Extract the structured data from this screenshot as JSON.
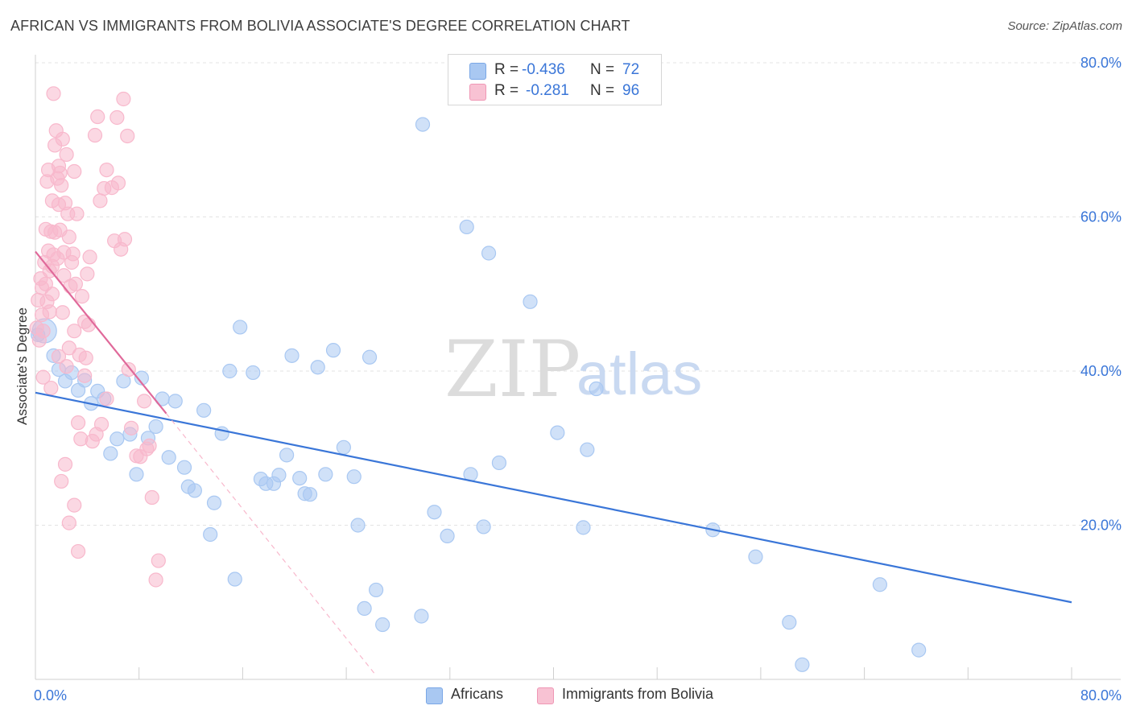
{
  "title": "AFRICAN VS IMMIGRANTS FROM BOLIVIA ASSOCIATE'S DEGREE CORRELATION CHART",
  "source": "Source: ZipAtlas.com",
  "watermark": {
    "zip": "ZIP",
    "atlas": "atlas"
  },
  "legend_top": {
    "r_label": "R =",
    "n_label": "N =",
    "rows": [
      {
        "r": "-0.436",
        "n": "72",
        "color": "#a9c8f2"
      },
      {
        "r": "-0.281",
        "n": "96",
        "color": "#f8b8cc"
      }
    ]
  },
  "legend_bottom": [
    "Africans",
    "Immigrants from Bolivia"
  ],
  "chart_data": {
    "type": "scatter",
    "xlabel": "",
    "ylabel": "Associate's Degree",
    "xlim": [
      0,
      80
    ],
    "ylim": [
      0,
      80
    ],
    "x_tick_labels": [
      "0.0%",
      "80.0%"
    ],
    "y_ticks": [
      20,
      40,
      60,
      80
    ],
    "y_tick_labels": [
      "20.0%",
      "40.0%",
      "60.0%",
      "80.0%"
    ],
    "grid": true,
    "series": [
      {
        "name": "Africans",
        "color": "#3a76d8",
        "fill": "#a9c8f2",
        "trend": {
          "x0": 0,
          "y0": 37.2,
          "x1": 80,
          "y1": 10.0,
          "style": "solid"
        },
        "points": [
          [
            0.2,
            44.7
          ],
          [
            1.4,
            42.0
          ],
          [
            1.8,
            40.2
          ],
          [
            2.3,
            38.7
          ],
          [
            2.8,
            39.8
          ],
          [
            3.3,
            37.5
          ],
          [
            3.8,
            38.8
          ],
          [
            4.3,
            35.8
          ],
          [
            4.8,
            37.4
          ],
          [
            5.3,
            36.4
          ],
          [
            5.8,
            29.3
          ],
          [
            6.3,
            31.2
          ],
          [
            6.8,
            38.7
          ],
          [
            7.3,
            31.8
          ],
          [
            7.8,
            26.6
          ],
          [
            8.2,
            39.1
          ],
          [
            8.7,
            31.3
          ],
          [
            9.3,
            32.8
          ],
          [
            9.8,
            36.4
          ],
          [
            10.3,
            28.8
          ],
          [
            10.8,
            36.1
          ],
          [
            11.5,
            27.5
          ],
          [
            11.8,
            25.0
          ],
          [
            12.3,
            24.5
          ],
          [
            13.0,
            34.9
          ],
          [
            13.5,
            18.8
          ],
          [
            13.8,
            22.9
          ],
          [
            14.4,
            31.9
          ],
          [
            15.0,
            40.0
          ],
          [
            15.4,
            13.0
          ],
          [
            15.8,
            45.7
          ],
          [
            16.8,
            39.8
          ],
          [
            17.4,
            26.0
          ],
          [
            17.8,
            25.4
          ],
          [
            18.4,
            25.4
          ],
          [
            18.8,
            26.5
          ],
          [
            19.4,
            29.1
          ],
          [
            19.8,
            42.0
          ],
          [
            20.4,
            26.1
          ],
          [
            20.8,
            24.1
          ],
          [
            21.2,
            24.0
          ],
          [
            21.8,
            40.5
          ],
          [
            22.4,
            26.6
          ],
          [
            23.0,
            42.7
          ],
          [
            23.8,
            30.1
          ],
          [
            24.6,
            26.3
          ],
          [
            24.9,
            20.0
          ],
          [
            25.4,
            9.2
          ],
          [
            25.8,
            41.8
          ],
          [
            26.3,
            11.6
          ],
          [
            26.8,
            7.1
          ],
          [
            29.8,
            8.2
          ],
          [
            29.9,
            72.0
          ],
          [
            30.8,
            21.7
          ],
          [
            31.8,
            18.6
          ],
          [
            33.3,
            58.7
          ],
          [
            33.6,
            26.6
          ],
          [
            34.6,
            19.8
          ],
          [
            35.0,
            55.3
          ],
          [
            35.8,
            28.1
          ],
          [
            38.2,
            49.0
          ],
          [
            40.3,
            32.0
          ],
          [
            42.3,
            19.7
          ],
          [
            42.6,
            29.8
          ],
          [
            43.3,
            37.7
          ],
          [
            52.3,
            19.4
          ],
          [
            55.6,
            15.9
          ],
          [
            58.2,
            7.4
          ],
          [
            59.2,
            1.9
          ],
          [
            65.2,
            12.3
          ],
          [
            68.2,
            3.8
          ]
        ]
      },
      {
        "name": "Immigrants from Bolivia",
        "color": "#e0699a",
        "fill": "#f8b8cc",
        "trend": {
          "x0": 0,
          "y0": 55.5,
          "x1": 10.1,
          "y1": 34.5,
          "style": "solid",
          "dash_to_x": 26.3,
          "dash_to_y": 0.5
        },
        "points": [
          [
            0.1,
            45.6
          ],
          [
            0.2,
            49.2
          ],
          [
            0.3,
            44.0
          ],
          [
            0.4,
            52.0
          ],
          [
            0.5,
            47.3
          ],
          [
            0.5,
            50.8
          ],
          [
            0.6,
            45.2
          ],
          [
            0.7,
            54.1
          ],
          [
            0.8,
            51.3
          ],
          [
            0.8,
            58.4
          ],
          [
            0.9,
            49.0
          ],
          [
            0.9,
            64.6
          ],
          [
            1.0,
            66.1
          ],
          [
            1.0,
            55.6
          ],
          [
            1.1,
            47.7
          ],
          [
            1.1,
            53.0
          ],
          [
            1.2,
            58.1
          ],
          [
            1.3,
            50.0
          ],
          [
            1.3,
            62.1
          ],
          [
            1.4,
            76.0
          ],
          [
            1.4,
            55.1
          ],
          [
            1.5,
            69.3
          ],
          [
            1.5,
            58.0
          ],
          [
            1.6,
            71.2
          ],
          [
            1.7,
            65.0
          ],
          [
            1.7,
            54.6
          ],
          [
            1.8,
            66.6
          ],
          [
            1.8,
            61.6
          ],
          [
            1.9,
            58.3
          ],
          [
            1.9,
            65.7
          ],
          [
            2.0,
            64.1
          ],
          [
            2.1,
            70.1
          ],
          [
            2.2,
            55.4
          ],
          [
            2.2,
            52.4
          ],
          [
            2.3,
            61.8
          ],
          [
            2.4,
            68.1
          ],
          [
            2.5,
            60.4
          ],
          [
            2.6,
            57.4
          ],
          [
            2.7,
            51.0
          ],
          [
            2.8,
            54.1
          ],
          [
            2.9,
            55.2
          ],
          [
            3.0,
            65.9
          ],
          [
            3.1,
            51.3
          ],
          [
            3.2,
            60.4
          ],
          [
            3.4,
            42.1
          ],
          [
            3.6,
            49.7
          ],
          [
            3.8,
            46.4
          ],
          [
            4.0,
            52.6
          ],
          [
            4.2,
            54.8
          ],
          [
            4.6,
            70.6
          ],
          [
            4.8,
            73.0
          ],
          [
            5.0,
            62.1
          ],
          [
            5.3,
            63.7
          ],
          [
            5.5,
            66.1
          ],
          [
            5.9,
            63.8
          ],
          [
            6.4,
            64.4
          ],
          [
            6.6,
            55.8
          ],
          [
            6.9,
            57.1
          ],
          [
            7.2,
            40.2
          ],
          [
            7.4,
            32.6
          ],
          [
            7.8,
            29.0
          ],
          [
            8.1,
            28.9
          ],
          [
            8.4,
            36.1
          ],
          [
            8.6,
            29.9
          ],
          [
            8.8,
            30.3
          ],
          [
            9.0,
            23.6
          ],
          [
            9.3,
            12.9
          ],
          [
            9.5,
            15.4
          ],
          [
            1.3,
            53.6
          ],
          [
            2.1,
            47.6
          ],
          [
            2.6,
            43.0
          ],
          [
            3.0,
            45.2
          ],
          [
            3.3,
            33.3
          ],
          [
            3.5,
            31.2
          ],
          [
            3.8,
            39.4
          ],
          [
            4.1,
            46.0
          ],
          [
            4.4,
            30.9
          ],
          [
            4.7,
            31.8
          ],
          [
            5.1,
            33.1
          ],
          [
            5.5,
            36.4
          ],
          [
            6.1,
            56.9
          ],
          [
            6.3,
            72.9
          ],
          [
            6.8,
            75.3
          ],
          [
            7.1,
            70.5
          ],
          [
            2.0,
            25.7
          ],
          [
            2.3,
            27.9
          ],
          [
            2.6,
            20.3
          ],
          [
            3.0,
            22.6
          ],
          [
            3.3,
            16.6
          ],
          [
            0.6,
            39.2
          ],
          [
            1.2,
            37.8
          ],
          [
            1.8,
            41.9
          ],
          [
            2.4,
            40.6
          ],
          [
            3.9,
            41.7
          ]
        ]
      }
    ]
  }
}
